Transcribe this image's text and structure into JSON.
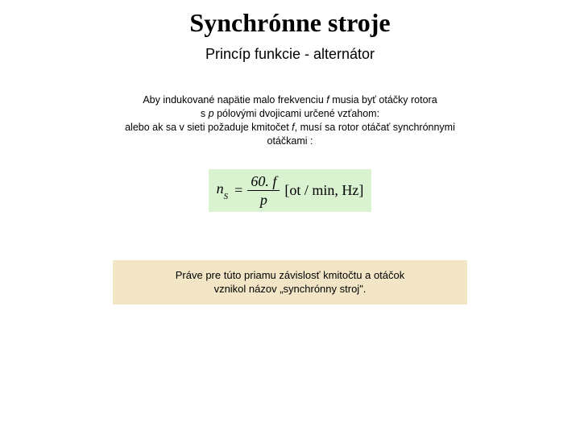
{
  "title": "Synchrónne stroje",
  "subtitle": "Princíp funkcie - alternátor",
  "body": {
    "line1_pre": "Aby indukované napätie malo frekvenciu ",
    "line1_f": "f",
    "line1_post": " musia byť otáčky rotora",
    "line2_pre": "s ",
    "line2_p": "p",
    "line2_post": " pólovými dvojicami určené vzťahom:",
    "line3_pre": "alebo ak sa v sieti požaduje kmitočet ",
    "line3_f": "f",
    "line3_post": ", musí sa rotor otáčať synchrónnymi",
    "line4": "otáčkami :"
  },
  "formula": {
    "lhs_var": "n",
    "lhs_sub": "S",
    "eq": "=",
    "num": "60. f",
    "den": "p",
    "unit": "[ot / min, Hz]",
    "background_color": "#d9f2d0"
  },
  "callout": {
    "line1": "Práve pre túto priamu závislosť kmitočtu a otáčok",
    "line2": "vznikol názov „synchrónny stroj\".",
    "background_color": "#f2e6c7"
  }
}
